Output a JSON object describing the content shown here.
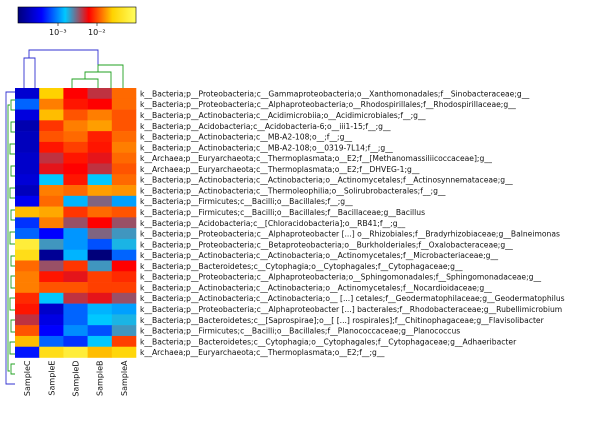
{
  "chart_data": {
    "type": "heatmap",
    "color_scale": {
      "tick_labels": [
        "10⁻³",
        "10⁻²"
      ],
      "stops": [
        "#00007a",
        "#0000ff",
        "#00c8ff",
        "#ff0000",
        "#ffd200",
        "#ffff60"
      ]
    },
    "columns": [
      "SampleC",
      "SampleE",
      "SampleD",
      "SampleB",
      "SampleA"
    ],
    "rows": [
      {
        "label": "k__Bacteria;p__Proteobacteria;c__Gammaproteobacteria;o__Xanthomonadales;f__Sinobacteraceae;g__",
        "values": [
          0.13,
          0.8,
          0.6,
          0.55,
          0.7
        ]
      },
      {
        "label": "k__Bacteria;p__Proteobacteria;c__Alphaproteobacteria;o__Rhodospirillales;f__Rhodospirillaceae;g__",
        "values": [
          0.3,
          0.72,
          0.62,
          0.6,
          0.7
        ]
      },
      {
        "label": "k__Bacteria;p__Actinobacteria;c__Acidimicrobiia;o__Acidimicrobiales;f__;g__",
        "values": [
          0.15,
          0.78,
          0.68,
          0.72,
          0.68
        ]
      },
      {
        "label": "k__Bacteria;p__Acidobacteria;c__Acidobacteria-6;o__iii1-15;f__;g__",
        "values": [
          0.08,
          0.65,
          0.72,
          0.75,
          0.68
        ]
      },
      {
        "label": "k__Bacteria;p__Actinobacteria;c__MB-A2-108;o__;f__;g__",
        "values": [
          0.1,
          0.68,
          0.7,
          0.63,
          0.7
        ]
      },
      {
        "label": "k__Bacteria;p__Actinobacteria;c__MB-A2-108;o__0319-7L14;f__;g__",
        "values": [
          0.1,
          0.62,
          0.66,
          0.62,
          0.72
        ]
      },
      {
        "label": "k__Archaea;p__Euryarchaeota;c__Thermoplasmata;o__E2;f__[Methanomassiliicoccaceae];g__",
        "values": [
          0.12,
          0.55,
          0.62,
          0.58,
          0.7
        ]
      },
      {
        "label": "k__Archaea;p__Euryarchaeota;c__Thermoplasmata;o__E2;f__DHVEG-1;g__",
        "values": [
          0.12,
          0.58,
          0.6,
          0.55,
          0.68
        ]
      },
      {
        "label": "k__Bacteria;p__Actinobacteria;c__Actinobacteria;o__Actinomycetales;f__Actinosynnemataceae;g__",
        "values": [
          0.14,
          0.4,
          0.62,
          0.4,
          0.7
        ]
      },
      {
        "label": "k__Bacteria;p__Actinobacteria;c__Thermoleophilia;o__Solirubrobacterales;f__;g__",
        "values": [
          0.1,
          0.72,
          0.7,
          0.75,
          0.74
        ]
      },
      {
        "label": "k__Bacteria;p__Firmicutes;c__Bacilli;o__Bacillales;f__;g__",
        "values": [
          0.18,
          0.7,
          0.38,
          0.5,
          0.36
        ]
      },
      {
        "label": "k__Bacteria;p__Firmicutes;c__Bacilli;o__Bacillales;f__Bacillaceae;g__Bacillus",
        "values": [
          0.78,
          0.76,
          0.65,
          0.7,
          0.68
        ]
      },
      {
        "label": "k__Bacteria;p__Acidobacteria;c__[Chloracidobacteria];o__RB41;f__;g__",
        "values": [
          0.25,
          0.72,
          0.52,
          0.6,
          0.52
        ]
      },
      {
        "label": "k__Bacteria;p__Proteobacteria;c__Alphaproteobacter [...] o__Rhizobiales;f__Bradyrhizobiaceae;g__Balneimonas",
        "values": [
          0.3,
          0.2,
          0.35,
          0.5,
          0.45
        ]
      },
      {
        "label": "k__Bacteria;p__Proteobacteria;c__Betaproteobacteria;o__Burkholderiales;f__Oxalobacteraceae;g__",
        "values": [
          0.92,
          0.45,
          0.35,
          0.28,
          0.42
        ]
      },
      {
        "label": "k__Bacteria;p__Actinobacteria;c__Actinobacteria;o__Actinomycetales;f__Microbacteriaceae;g__",
        "values": [
          0.85,
          0.04,
          0.38,
          0.0,
          0.3
        ]
      },
      {
        "label": "k__Bacteria;p__Bacteroidetes;c__Cytophagia;o__Cytophagales;f__Cytophagaceae;g__",
        "values": [
          0.7,
          0.52,
          0.65,
          0.45,
          0.6
        ]
      },
      {
        "label": "k__Bacteria;p__Proteobacteria;c__Alphaproteobacteria;o__Sphingomonadales;f__Sphingomonadaceae;g__",
        "values": [
          0.72,
          0.62,
          0.58,
          0.66,
          0.64
        ]
      },
      {
        "label": "k__Bacteria;p__Actinobacteria;c__Actinobacteria;o__Actinomycetales;f__Nocardioidaceae;g__",
        "values": [
          0.72,
          0.68,
          0.68,
          0.66,
          0.66
        ]
      },
      {
        "label": "k__Bacteria;p__Actinobacteria;c__Actinobacteria;o__ [...] cetales;f__Geodermatophilaceae;g__Geodermatophilus",
        "values": [
          0.64,
          0.4,
          0.55,
          0.58,
          0.52
        ]
      },
      {
        "label": "k__Bacteria;p__Proteobacteria;c__Alphaproteobacter [...] bacterales;f__Rhodobacteraceae;g__Rubellimicrobium",
        "values": [
          0.62,
          0.12,
          0.3,
          0.38,
          0.36
        ]
      },
      {
        "label": "k__Bacteria;p__Bacteroidetes;c__[Saprospirae];o__[ [...] rospirales];f__Chitinophagaceae;g__Flavisolibacter",
        "values": [
          0.55,
          0.16,
          0.3,
          0.4,
          0.42
        ]
      },
      {
        "label": "k__Bacteria;p__Firmicutes;c__Bacilli;o__Bacillales;f__Planococcaceae;g__Planococcus",
        "values": [
          0.68,
          0.2,
          0.34,
          0.28,
          0.45
        ]
      },
      {
        "label": "k__Bacteria;p__Bacteroidetes;c__Cytophagia;o__Cytophagales;f__Cytophagaceae;g__Adhaeribacter",
        "values": [
          0.78,
          0.3,
          0.25,
          0.4,
          0.66
        ]
      },
      {
        "label": "k__Archaea;p__Euryarchaeota;c__Thermoplasmata;o__E2;f__;g__",
        "values": [
          0.22,
          0.85,
          0.92,
          0.78,
          0.82
        ]
      }
    ]
  }
}
